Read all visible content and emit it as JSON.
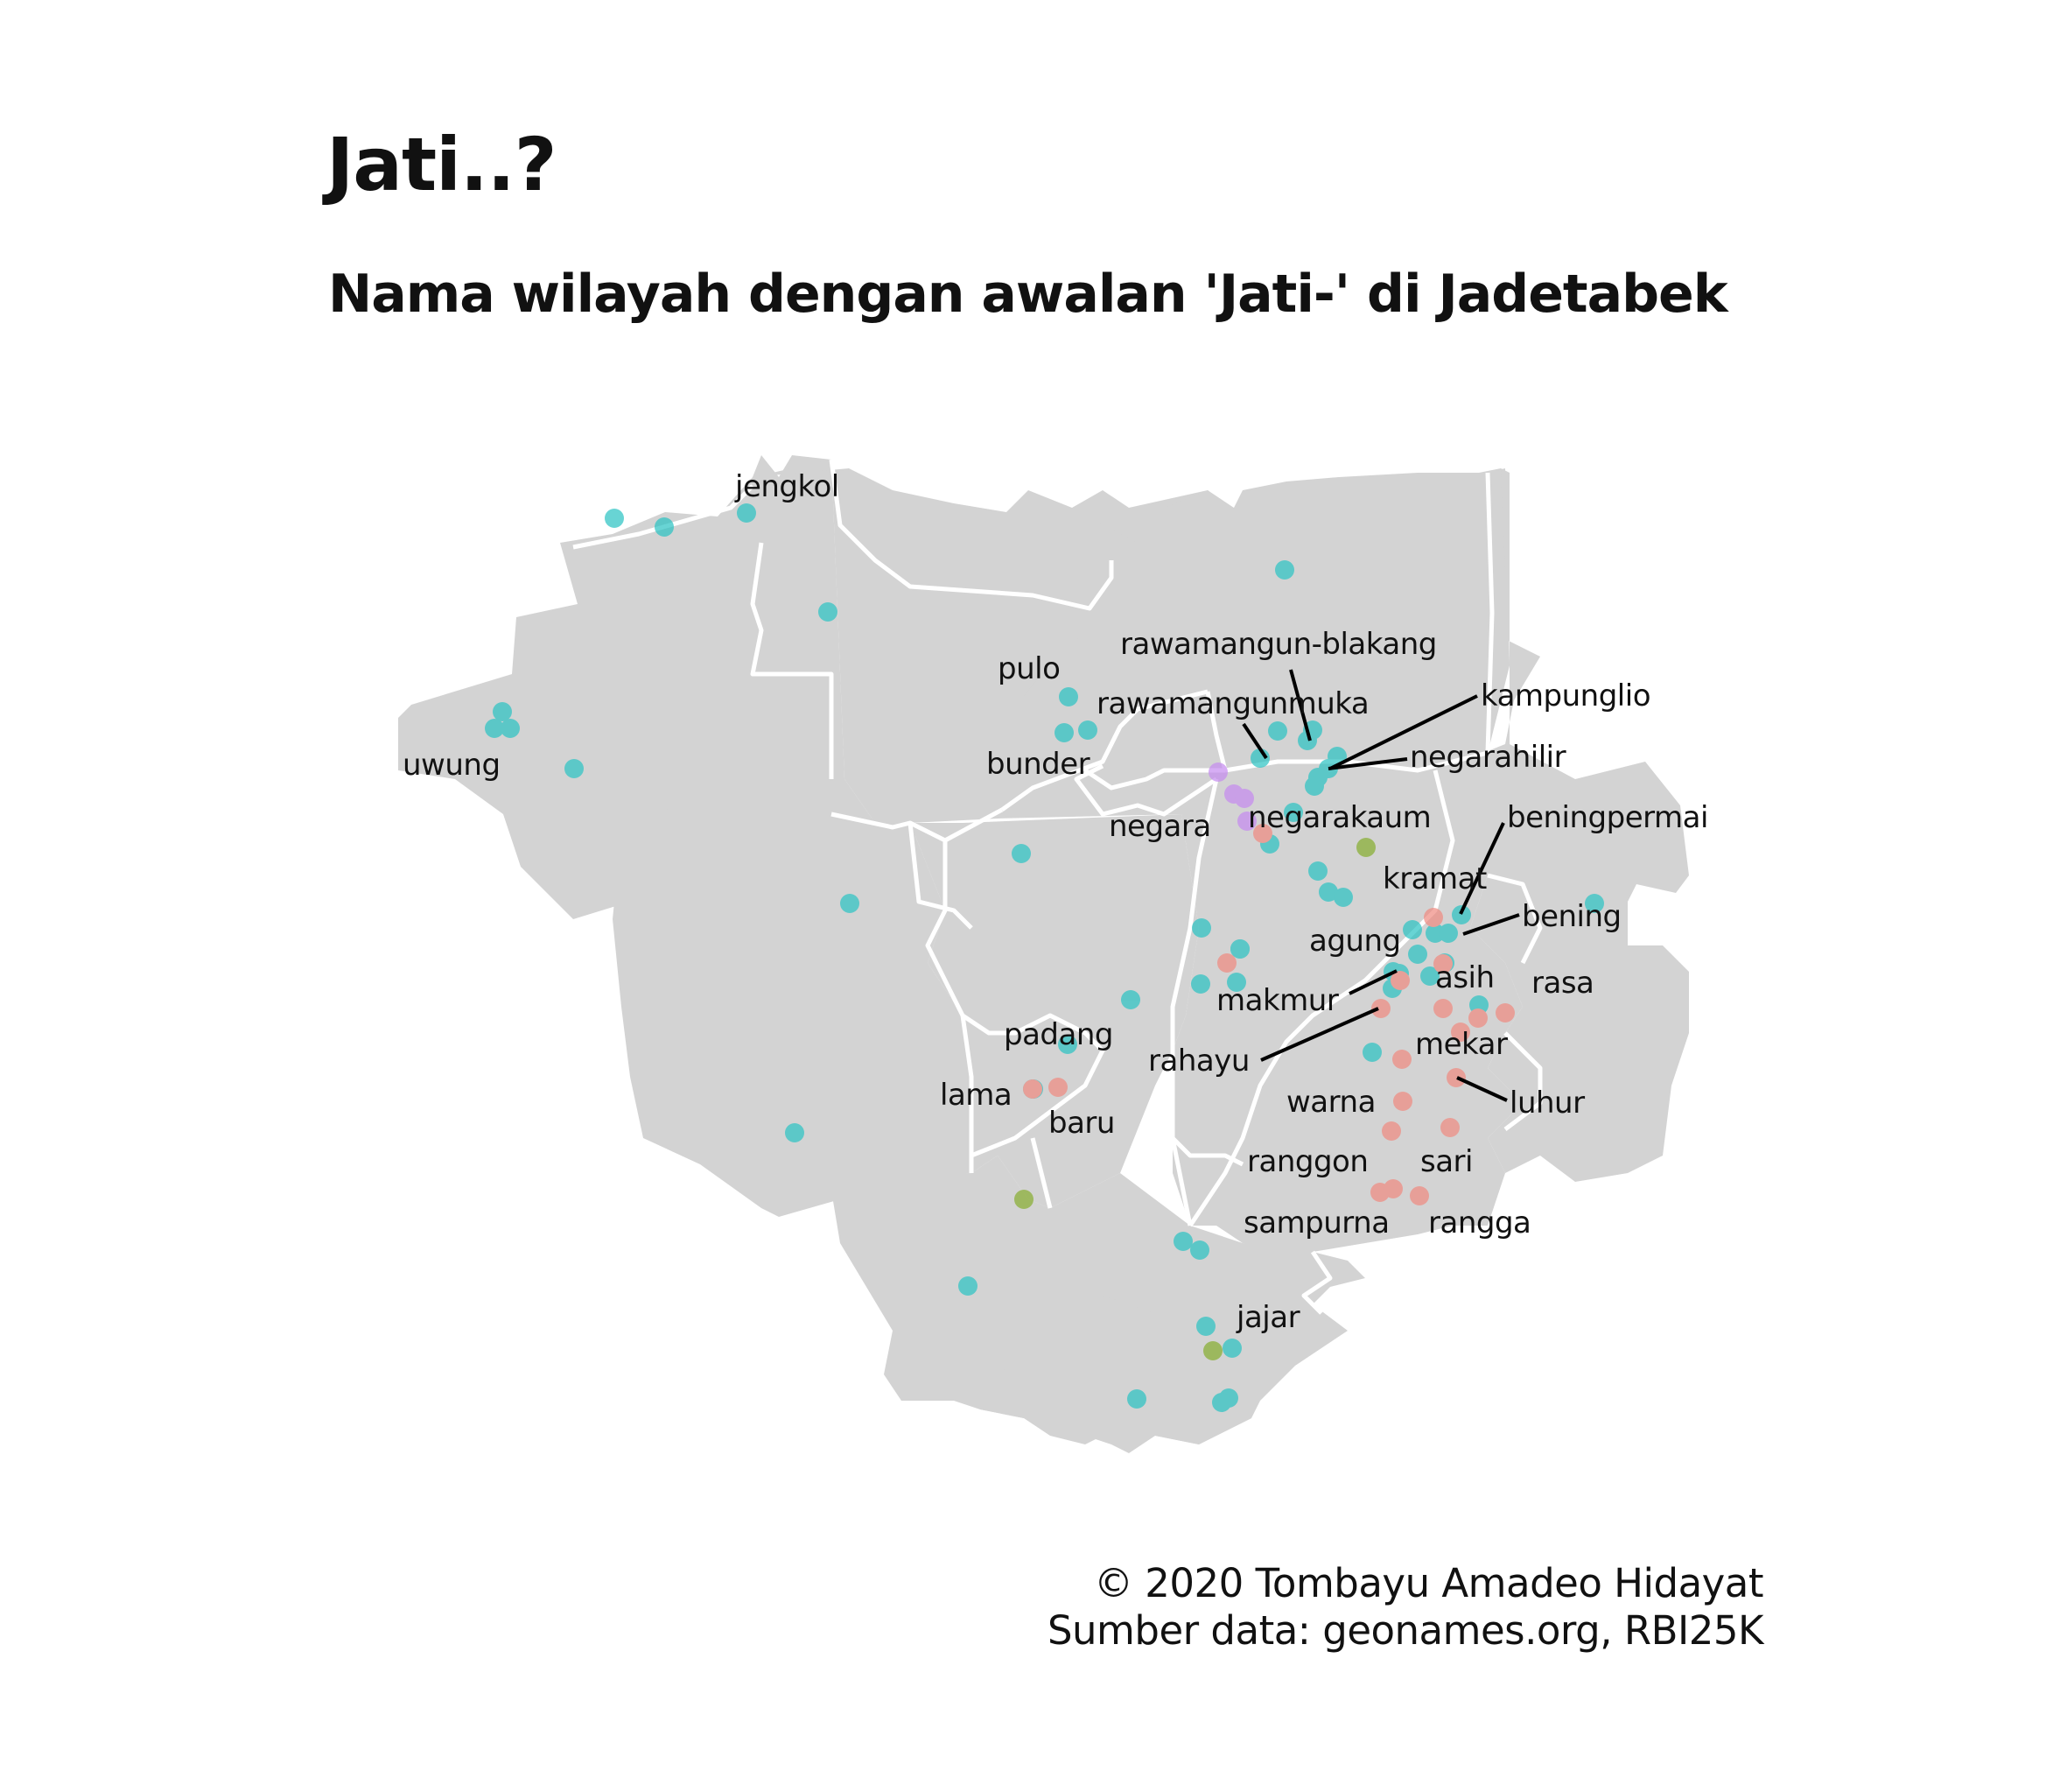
{
  "title": "Jati..?",
  "subtitle": "Nama wilayah dengan awalan 'Jati-' di Jadetabek",
  "caption": {
    "line1": "© 2020 Tombayu Amadeo Hidayat",
    "line2": "Sumber data: geonames.org, RBI25K"
  },
  "colors": {
    "background": "#ffffff",
    "land": "#d3d3d3",
    "boundary": "#ffffff",
    "teal": "#29c3c3",
    "red": "#f08a80",
    "green": "#86ad2e",
    "purple": "#c58af0",
    "leader": "#000000"
  },
  "place_labels": [
    "jengkol",
    "pulo",
    "rawamangun-blakang",
    "kampunglio",
    "rawamangunmuka",
    "uwung",
    "bunder",
    "negarahilir",
    "negarakaum",
    "beningpermai",
    "negara",
    "kramat",
    "bening",
    "agung",
    "asih",
    "rasa",
    "makmur",
    "padang",
    "mekar",
    "rahayu",
    "lama",
    "warna",
    "luhur",
    "baru",
    "ranggon",
    "sari",
    "sampurna",
    "rangga",
    "jajar"
  ]
}
